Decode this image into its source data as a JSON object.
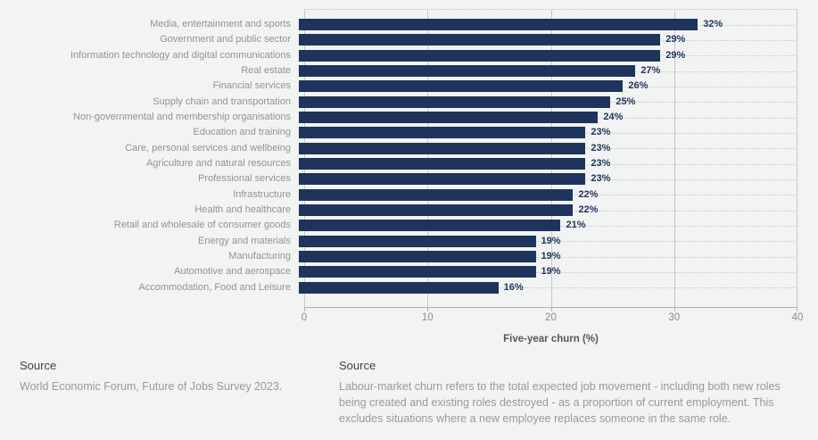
{
  "chart_data": {
    "type": "bar",
    "orientation": "horizontal",
    "title": "",
    "xlabel": "Five-year churn (%)",
    "xlim": [
      0,
      40
    ],
    "xticks": [
      0,
      10,
      20,
      30,
      40
    ],
    "categories": [
      "Media, entertainment and sports",
      "Government and public sector",
      "Information technology and digital communications",
      "Real estate",
      "Financial services",
      "Supply chain and transportation",
      "Non-governmental and membership organisations",
      "Education and training",
      "Care, personal services and wellbeing",
      "Agriculture and natural resources",
      "Professional services",
      "Infrastructure",
      "Health and healthcare",
      "Retail and wholesale of consumer goods",
      "Energy and materials",
      "Manufacturing",
      "Automotive and aerospace",
      "Accommodation, Food and Leisure"
    ],
    "values": [
      32,
      29,
      29,
      27,
      26,
      25,
      24,
      23,
      23,
      23,
      23,
      22,
      22,
      21,
      19,
      19,
      19,
      16
    ],
    "value_suffix": "%",
    "grid": {
      "vertical": "solid",
      "horizontal": "dotted-row-lines"
    },
    "legend": "none"
  },
  "footer": {
    "left": {
      "heading": "Source",
      "body": "World Economic Forum, Future of Jobs Survey 2023."
    },
    "right": {
      "heading": "Source",
      "body": "Labour-market churn refers to the total expected job movement - including both new roles being created and existing roles destroyed - as a proportion of current employment. This excludes situations where a new employee replaces someone in the same role."
    }
  },
  "colors": {
    "background": "#f2f3f3",
    "bar": "#1e345c",
    "value_label": "#1e345c",
    "category_label": "#909396",
    "tick_label": "#8a8d8f",
    "axis_title": "#55585a",
    "gridline": "#c5c9c8",
    "dotted_line": "#c6c9c9",
    "axis_line": "#aeb2b2",
    "source_heading": "#3f4245",
    "source_body": "#97999c"
  }
}
